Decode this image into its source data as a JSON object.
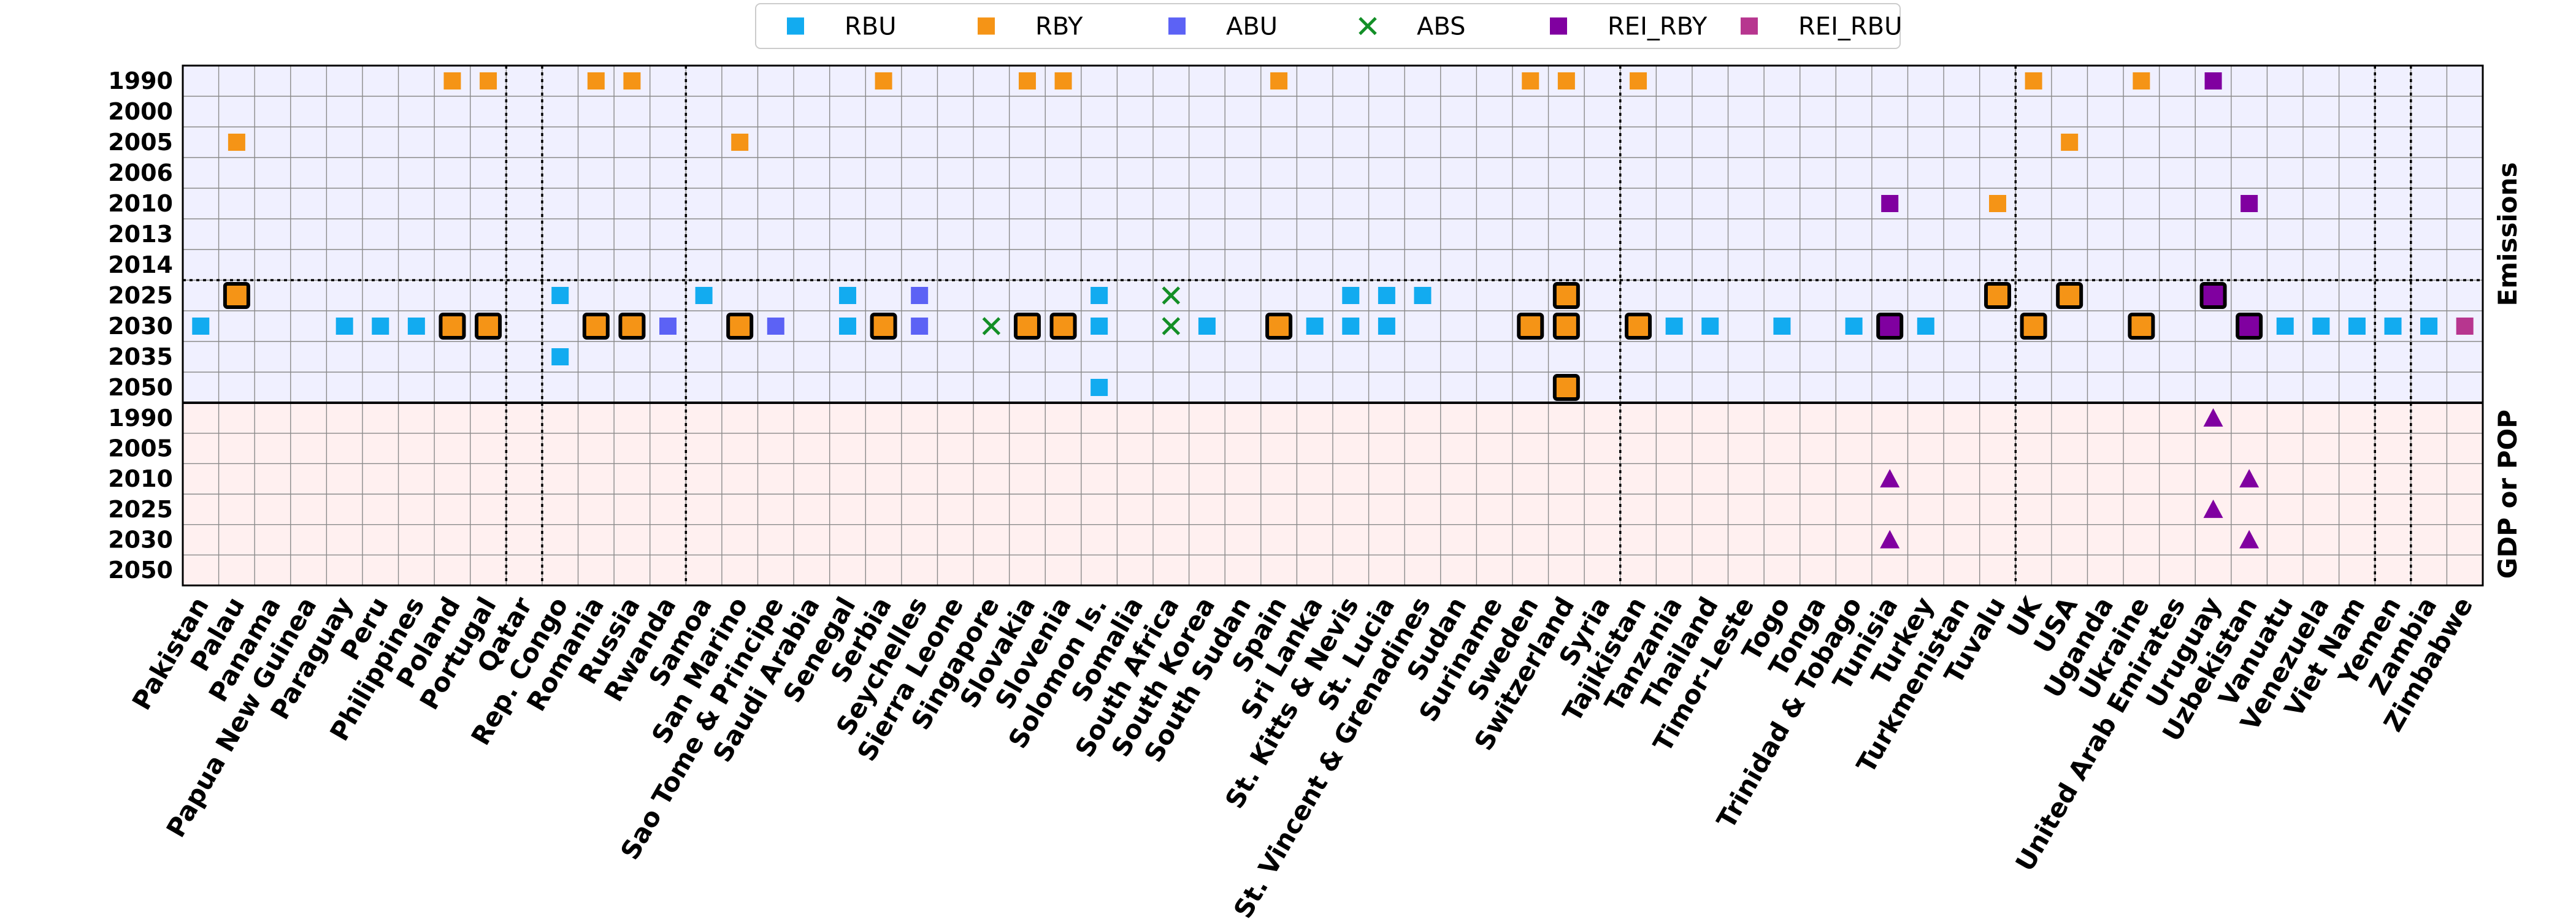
{
  "chart_data": {
    "type": "scatter",
    "legend_position": "top-center",
    "grid": true,
    "legend": [
      {
        "key": "RBU",
        "label": "RBU",
        "marker": "square",
        "color": "#12ABF0"
      },
      {
        "key": "RBY",
        "label": "RBY",
        "marker": "square",
        "color": "#F59416"
      },
      {
        "key": "ABU",
        "label": "ABU",
        "marker": "square",
        "color": "#5C62F5"
      },
      {
        "key": "ABS",
        "label": "ABS",
        "marker": "x",
        "color": "#138F27"
      },
      {
        "key": "REI_RBY",
        "label": "REI_RBY",
        "marker": "square",
        "color": "#8000A0"
      },
      {
        "key": "REI_RBU",
        "label": "REI_RBU",
        "marker": "square",
        "color": "#B7368F"
      }
    ],
    "countries": [
      "Pakistan",
      "Palau",
      "Panama",
      "Papua New Guinea",
      "Paraguay",
      "Peru",
      "Philippines",
      "Poland",
      "Portugal",
      "Qatar",
      "Rep. Congo",
      "Romania",
      "Russia",
      "Rwanda",
      "Samoa",
      "San Marino",
      "Sao Tome & Principe",
      "Saudi Arabia",
      "Senegal",
      "Serbia",
      "Seychelles",
      "Sierra Leone",
      "Singapore",
      "Slovakia",
      "Slovenia",
      "Solomon Is.",
      "Somalia",
      "South Africa",
      "South Korea",
      "South Sudan",
      "Spain",
      "Sri Lanka",
      "St. Kitts & Nevis",
      "St. Lucia",
      "St. Vincent & Grenadines",
      "Sudan",
      "Suriname",
      "Sweden",
      "Switzerland",
      "Syria",
      "Tajikistan",
      "Tanzania",
      "Thailand",
      "Timor-Leste",
      "Togo",
      "Tonga",
      "Trinidad & Tobago",
      "Tunisia",
      "Turkey",
      "Turkmenistan",
      "Tuvalu",
      "UK",
      "USA",
      "Uganda",
      "Ukraine",
      "United Arab Emirates",
      "Uruguay",
      "Uzbekistan",
      "Vanuatu",
      "Venezuela",
      "Viet Nam",
      "Yemen",
      "Zambia",
      "Zimbabwe"
    ],
    "vertical_separators_after": [
      "Portugal",
      "Qatar",
      "Rwanda",
      "Syria",
      "Tuvalu",
      "Viet Nam",
      "Yemen"
    ],
    "panels": [
      {
        "label": "Emissions",
        "background": "#F0F0FF",
        "years": [
          "1990",
          "2000",
          "2005",
          "2006",
          "2010",
          "2013",
          "2014",
          "2025",
          "2030",
          "2035",
          "2050"
        ],
        "dotted_separator_after": "2014"
      },
      {
        "label": "GDP or POP",
        "background": "#FFF0F0",
        "years": [
          "1990",
          "2005",
          "2010",
          "2025",
          "2030",
          "2050"
        ],
        "dotted_separator_after": null
      }
    ],
    "points": [
      {
        "panel": 0,
        "country": "Palau",
        "year": "2005",
        "series": "RBY"
      },
      {
        "panel": 0,
        "country": "Poland",
        "year": "1990",
        "series": "RBY"
      },
      {
        "panel": 0,
        "country": "Portugal",
        "year": "1990",
        "series": "RBY"
      },
      {
        "panel": 0,
        "country": "Romania",
        "year": "1990",
        "series": "RBY"
      },
      {
        "panel": 0,
        "country": "Russia",
        "year": "1990",
        "series": "RBY"
      },
      {
        "panel": 0,
        "country": "San Marino",
        "year": "2005",
        "series": "RBY"
      },
      {
        "panel": 0,
        "country": "Serbia",
        "year": "1990",
        "series": "RBY"
      },
      {
        "panel": 0,
        "country": "Slovakia",
        "year": "1990",
        "series": "RBY"
      },
      {
        "panel": 0,
        "country": "Slovenia",
        "year": "1990",
        "series": "RBY"
      },
      {
        "panel": 0,
        "country": "Spain",
        "year": "1990",
        "series": "RBY"
      },
      {
        "panel": 0,
        "country": "Sweden",
        "year": "1990",
        "series": "RBY"
      },
      {
        "panel": 0,
        "country": "Switzerland",
        "year": "1990",
        "series": "RBY"
      },
      {
        "panel": 0,
        "country": "Tajikistan",
        "year": "1990",
        "series": "RBY"
      },
      {
        "panel": 0,
        "country": "Tunisia",
        "year": "2010",
        "series": "REI_RBY"
      },
      {
        "panel": 0,
        "country": "Tuvalu",
        "year": "2010",
        "series": "RBY"
      },
      {
        "panel": 0,
        "country": "UK",
        "year": "1990",
        "series": "RBY"
      },
      {
        "panel": 0,
        "country": "USA",
        "year": "2005",
        "series": "RBY"
      },
      {
        "panel": 0,
        "country": "Ukraine",
        "year": "1990",
        "series": "RBY"
      },
      {
        "panel": 0,
        "country": "Uruguay",
        "year": "1990",
        "series": "REI_RBY"
      },
      {
        "panel": 0,
        "country": "Uzbekistan",
        "year": "2010",
        "series": "REI_RBY"
      },
      {
        "panel": 0,
        "country": "Palau",
        "year": "2025",
        "series": "RBY",
        "highlight": true
      },
      {
        "panel": 0,
        "country": "Rep. Congo",
        "year": "2025",
        "series": "RBU"
      },
      {
        "panel": 0,
        "country": "Samoa",
        "year": "2025",
        "series": "RBU"
      },
      {
        "panel": 0,
        "country": "Senegal",
        "year": "2025",
        "series": "RBU"
      },
      {
        "panel": 0,
        "country": "Seychelles",
        "year": "2025",
        "series": "ABU"
      },
      {
        "panel": 0,
        "country": "Solomon Is.",
        "year": "2025",
        "series": "RBU"
      },
      {
        "panel": 0,
        "country": "South Africa",
        "year": "2025",
        "series": "ABS"
      },
      {
        "panel": 0,
        "country": "St. Kitts & Nevis",
        "year": "2025",
        "series": "RBU"
      },
      {
        "panel": 0,
        "country": "St. Lucia",
        "year": "2025",
        "series": "RBU"
      },
      {
        "panel": 0,
        "country": "St. Vincent & Grenadines",
        "year": "2025",
        "series": "RBU"
      },
      {
        "panel": 0,
        "country": "Switzerland",
        "year": "2025",
        "series": "RBY",
        "highlight": true
      },
      {
        "panel": 0,
        "country": "Tuvalu",
        "year": "2025",
        "series": "RBY",
        "highlight": true
      },
      {
        "panel": 0,
        "country": "USA",
        "year": "2025",
        "series": "RBY",
        "highlight": true
      },
      {
        "panel": 0,
        "country": "Uruguay",
        "year": "2025",
        "series": "REI_RBY",
        "highlight": true
      },
      {
        "panel": 0,
        "country": "Pakistan",
        "year": "2030",
        "series": "RBU"
      },
      {
        "panel": 0,
        "country": "Paraguay",
        "year": "2030",
        "series": "RBU"
      },
      {
        "panel": 0,
        "country": "Peru",
        "year": "2030",
        "series": "RBU"
      },
      {
        "panel": 0,
        "country": "Philippines",
        "year": "2030",
        "series": "RBU"
      },
      {
        "panel": 0,
        "country": "Poland",
        "year": "2030",
        "series": "RBY",
        "highlight": true
      },
      {
        "panel": 0,
        "country": "Portugal",
        "year": "2030",
        "series": "RBY",
        "highlight": true
      },
      {
        "panel": 0,
        "country": "Romania",
        "year": "2030",
        "series": "RBY",
        "highlight": true
      },
      {
        "panel": 0,
        "country": "Russia",
        "year": "2030",
        "series": "RBY",
        "highlight": true
      },
      {
        "panel": 0,
        "country": "Rwanda",
        "year": "2030",
        "series": "ABU"
      },
      {
        "panel": 0,
        "country": "San Marino",
        "year": "2030",
        "series": "RBY",
        "highlight": true
      },
      {
        "panel": 0,
        "country": "Sao Tome & Principe",
        "year": "2030",
        "series": "ABU"
      },
      {
        "panel": 0,
        "country": "Senegal",
        "year": "2030",
        "series": "RBU"
      },
      {
        "panel": 0,
        "country": "Serbia",
        "year": "2030",
        "series": "RBY",
        "highlight": true
      },
      {
        "panel": 0,
        "country": "Seychelles",
        "year": "2030",
        "series": "ABU"
      },
      {
        "panel": 0,
        "country": "Singapore",
        "year": "2030",
        "series": "ABS"
      },
      {
        "panel": 0,
        "country": "Slovakia",
        "year": "2030",
        "series": "RBY",
        "highlight": true
      },
      {
        "panel": 0,
        "country": "Slovenia",
        "year": "2030",
        "series": "RBY",
        "highlight": true
      },
      {
        "panel": 0,
        "country": "Solomon Is.",
        "year": "2030",
        "series": "RBU"
      },
      {
        "panel": 0,
        "country": "South Africa",
        "year": "2030",
        "series": "ABS"
      },
      {
        "panel": 0,
        "country": "South Korea",
        "year": "2030",
        "series": "RBU"
      },
      {
        "panel": 0,
        "country": "Spain",
        "year": "2030",
        "series": "RBY",
        "highlight": true
      },
      {
        "panel": 0,
        "country": "Sri Lanka",
        "year": "2030",
        "series": "RBU"
      },
      {
        "panel": 0,
        "country": "St. Kitts & Nevis",
        "year": "2030",
        "series": "RBU"
      },
      {
        "panel": 0,
        "country": "St. Lucia",
        "year": "2030",
        "series": "RBU"
      },
      {
        "panel": 0,
        "country": "Sweden",
        "year": "2030",
        "series": "RBY",
        "highlight": true
      },
      {
        "panel": 0,
        "country": "Switzerland",
        "year": "2030",
        "series": "RBY",
        "highlight": true
      },
      {
        "panel": 0,
        "country": "Tajikistan",
        "year": "2030",
        "series": "RBY",
        "highlight": true
      },
      {
        "panel": 0,
        "country": "Tanzania",
        "year": "2030",
        "series": "RBU"
      },
      {
        "panel": 0,
        "country": "Thailand",
        "year": "2030",
        "series": "RBU"
      },
      {
        "panel": 0,
        "country": "Togo",
        "year": "2030",
        "series": "RBU"
      },
      {
        "panel": 0,
        "country": "Trinidad & Tobago",
        "year": "2030",
        "series": "RBU"
      },
      {
        "panel": 0,
        "country": "Tunisia",
        "year": "2030",
        "series": "REI_RBY",
        "highlight": true
      },
      {
        "panel": 0,
        "country": "Turkey",
        "year": "2030",
        "series": "RBU"
      },
      {
        "panel": 0,
        "country": "UK",
        "year": "2030",
        "series": "RBY",
        "highlight": true
      },
      {
        "panel": 0,
        "country": "Ukraine",
        "year": "2030",
        "series": "RBY",
        "highlight": true
      },
      {
        "panel": 0,
        "country": "Uzbekistan",
        "year": "2030",
        "series": "REI_RBY",
        "highlight": true
      },
      {
        "panel": 0,
        "country": "Vanuatu",
        "year": "2030",
        "series": "RBU"
      },
      {
        "panel": 0,
        "country": "Venezuela",
        "year": "2030",
        "series": "RBU"
      },
      {
        "panel": 0,
        "country": "Viet Nam",
        "year": "2030",
        "series": "RBU"
      },
      {
        "panel": 0,
        "country": "Yemen",
        "year": "2030",
        "series": "RBU"
      },
      {
        "panel": 0,
        "country": "Zambia",
        "year": "2030",
        "series": "RBU"
      },
      {
        "panel": 0,
        "country": "Zimbabwe",
        "year": "2030",
        "series": "REI_RBU"
      },
      {
        "panel": 0,
        "country": "Rep. Congo",
        "year": "2035",
        "series": "RBU"
      },
      {
        "panel": 0,
        "country": "Solomon Is.",
        "year": "2050",
        "series": "RBU"
      },
      {
        "panel": 0,
        "country": "Switzerland",
        "year": "2050",
        "series": "RBY",
        "highlight": true
      },
      {
        "panel": 1,
        "country": "Uruguay",
        "year": "1990",
        "series": "REI_RBY",
        "marker": "triangle"
      },
      {
        "panel": 1,
        "country": "Tunisia",
        "year": "2010",
        "series": "REI_RBY",
        "marker": "triangle"
      },
      {
        "panel": 1,
        "country": "Uzbekistan",
        "year": "2010",
        "series": "REI_RBY",
        "marker": "triangle"
      },
      {
        "panel": 1,
        "country": "Uruguay",
        "year": "2025",
        "series": "REI_RBY",
        "marker": "triangle"
      },
      {
        "panel": 1,
        "country": "Tunisia",
        "year": "2030",
        "series": "REI_RBY",
        "marker": "triangle"
      },
      {
        "panel": 1,
        "country": "Uzbekistan",
        "year": "2030",
        "series": "REI_RBY",
        "marker": "triangle"
      }
    ]
  }
}
